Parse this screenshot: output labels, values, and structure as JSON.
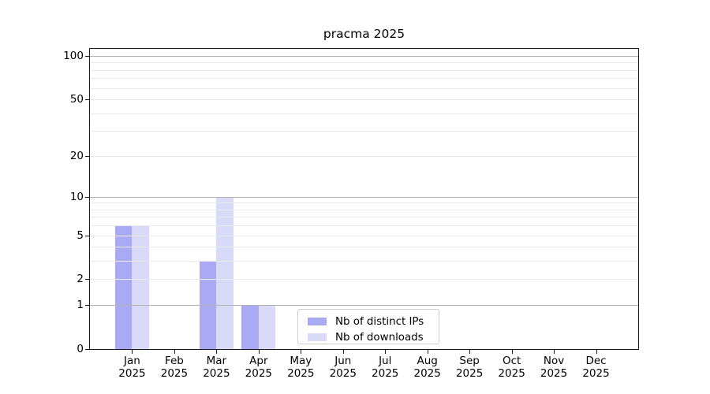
{
  "chart_data": {
    "type": "bar",
    "title": "pracma 2025",
    "categories": [
      "Jan",
      "Feb",
      "Mar",
      "Apr",
      "May",
      "Jun",
      "Jul",
      "Aug",
      "Sep",
      "Oct",
      "Nov",
      "Dec"
    ],
    "year_suffix": "2025",
    "series": [
      {
        "name": "Nb of distinct IPs",
        "color": "#a9a9f4",
        "values": [
          6,
          0,
          3,
          1,
          0,
          0,
          0,
          0,
          0,
          0,
          0,
          0
        ]
      },
      {
        "name": "Nb of downloads",
        "color": "#d9d9f8",
        "values": [
          6,
          0,
          10,
          1,
          0,
          0,
          0,
          0,
          0,
          0,
          0,
          0
        ]
      }
    ],
    "xlabel": "",
    "ylabel": "",
    "yscale": "log1p",
    "ylim": [
      0,
      112
    ],
    "yticks": [
      0,
      1,
      2,
      5,
      10,
      20,
      50,
      100
    ],
    "major_grid_values": [
      1,
      10,
      100
    ],
    "minor_grid_values": [
      2,
      3,
      4,
      5,
      6,
      7,
      8,
      9,
      20,
      30,
      40,
      50,
      60,
      70,
      80,
      90
    ],
    "grid": "on",
    "legend_position": "inside lower-center",
    "colors": {
      "major_grid": "#b2b2b2",
      "minor_grid": "#e9e9e9",
      "axis": "#1a1a1a",
      "legend_border": "#cccccc",
      "background": "#ffffff"
    }
  }
}
